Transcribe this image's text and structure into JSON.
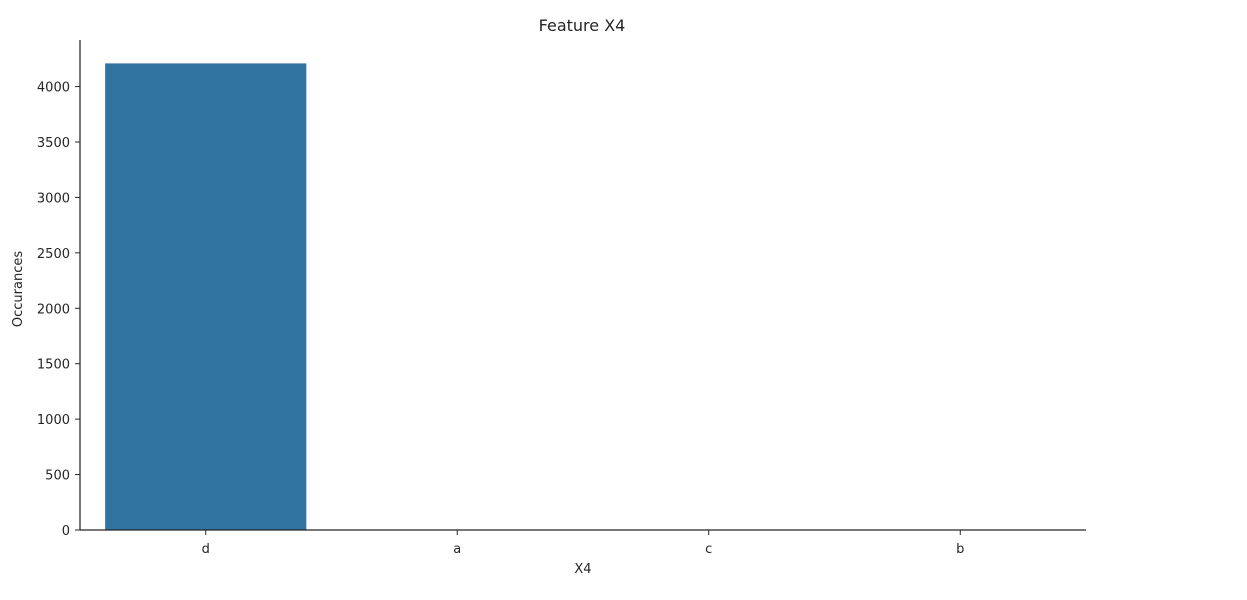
{
  "chart_data": {
    "type": "bar",
    "title": "Feature X4",
    "xlabel": "X4",
    "ylabel": "Occurances",
    "categories": [
      "d",
      "a",
      "c",
      "b"
    ],
    "values": [
      4209,
      1,
      1,
      1
    ],
    "ylim": [
      0,
      4420
    ],
    "yticks": [
      0,
      500,
      1000,
      1500,
      2000,
      2500,
      3000,
      3500,
      4000
    ],
    "ytick_labels": [
      "0",
      "500",
      "1000",
      "1500",
      "2000",
      "2500",
      "3000",
      "3500",
      "4000"
    ],
    "bar_color": "#3274a1",
    "axis_color": "#262626",
    "grid": false,
    "legend": "none"
  }
}
